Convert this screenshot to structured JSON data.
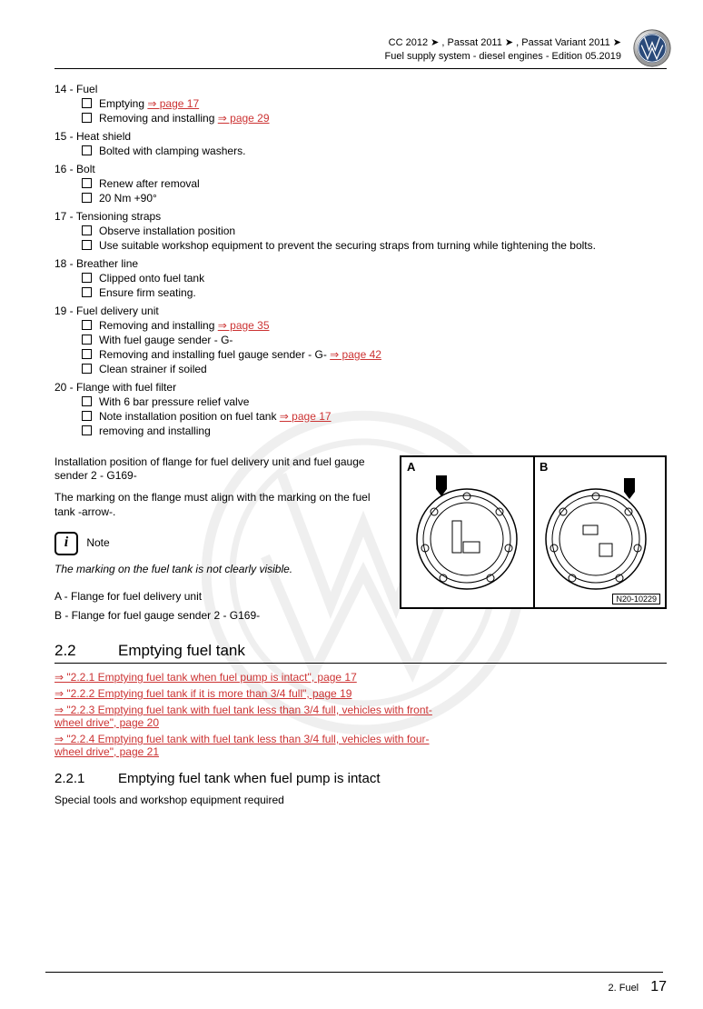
{
  "header": {
    "line1": "CC 2012 ➤ , Passat 2011 ➤ , Passat Variant 2011 ➤",
    "line2": "Fuel supply system - diesel engines - Edition 05.2019"
  },
  "items": [
    {
      "num": "14 - ",
      "title": "Fuel",
      "subs": [
        {
          "parts": [
            {
              "t": "Emptying "
            },
            {
              "t": "⇒ page 17",
              "link": true
            }
          ]
        },
        {
          "parts": [
            {
              "t": "Removing and installing "
            },
            {
              "t": "⇒ page 29",
              "link": true
            }
          ]
        }
      ]
    },
    {
      "num": "15 - ",
      "title": "Heat shield",
      "subs": [
        {
          "parts": [
            {
              "t": "Bolted with clamping washers."
            }
          ]
        }
      ]
    },
    {
      "num": "16 - ",
      "title": "Bolt",
      "subs": [
        {
          "parts": [
            {
              "t": "Renew after removal"
            }
          ]
        },
        {
          "parts": [
            {
              "t": "20 Nm +90°"
            }
          ]
        }
      ]
    },
    {
      "num": "17 - ",
      "title": "Tensioning straps",
      "subs": [
        {
          "parts": [
            {
              "t": "Observe installation position"
            }
          ]
        },
        {
          "parts": [
            {
              "t": "Use suitable workshop equipment to prevent the securing straps from turning while tightening the bolts."
            }
          ]
        }
      ]
    },
    {
      "num": "18 - ",
      "title": "Breather line",
      "subs": [
        {
          "parts": [
            {
              "t": "Clipped onto fuel tank"
            }
          ]
        },
        {
          "parts": [
            {
              "t": "Ensure firm seating."
            }
          ]
        }
      ]
    },
    {
      "num": "19 - ",
      "title": "Fuel delivery unit",
      "subs": [
        {
          "parts": [
            {
              "t": "Removing and installing "
            },
            {
              "t": "⇒ page 35",
              "link": true
            }
          ]
        },
        {
          "parts": [
            {
              "t": "With fuel gauge sender - G-"
            }
          ]
        },
        {
          "parts": [
            {
              "t": "Removing and installing fuel gauge sender - G- "
            },
            {
              "t": "⇒ page 42",
              "link": true
            }
          ]
        },
        {
          "parts": [
            {
              "t": "Clean strainer if soiled"
            }
          ]
        }
      ]
    },
    {
      "num": "20 - ",
      "title": "Flange with fuel filter",
      "subs": [
        {
          "parts": [
            {
              "t": "With 6 bar pressure relief valve"
            }
          ]
        },
        {
          "parts": [
            {
              "t": "Note installation position on fuel tank "
            },
            {
              "t": "⇒ page 17",
              "link": true
            }
          ]
        },
        {
          "parts": [
            {
              "t": "removing and installing"
            }
          ]
        }
      ]
    }
  ],
  "install": {
    "para1": "Installation position of flange for fuel delivery unit and fuel gauge sender 2 - G169-",
    "para2": "The marking on the flange must align with the marking on the fuel tank -arrow-.",
    "note_label": "Note",
    "note_text": "The marking on the fuel tank is not clearly visible.",
    "a": "A - Flange for fuel delivery unit",
    "b": "B - Flange for fuel gauge sender 2 - G169-",
    "img_a": "A",
    "img_b": "B",
    "img_ref": "N20-10229"
  },
  "section22": {
    "num": "2.2",
    "title": "Emptying fuel tank",
    "links": [
      "⇒ \"2.2.1 Emptying fuel tank when fuel pump is intact\", page 17",
      "⇒ \"2.2.2 Emptying fuel tank if it is more than 3/4 full\", page 19",
      "⇒ \"2.2.3 Emptying fuel tank with fuel tank less than 3/4 full, vehicles with front-wheel drive\", page 20",
      "⇒ \"2.2.4 Emptying fuel tank with fuel tank less than 3/4 full, vehicles with four-wheel drive\", page 21"
    ]
  },
  "section221": {
    "num": "2.2.1",
    "title": "Emptying fuel tank when fuel pump is intact",
    "body": "Special tools and workshop equipment required"
  },
  "footer": {
    "section": "2. Fuel",
    "page": "17"
  }
}
